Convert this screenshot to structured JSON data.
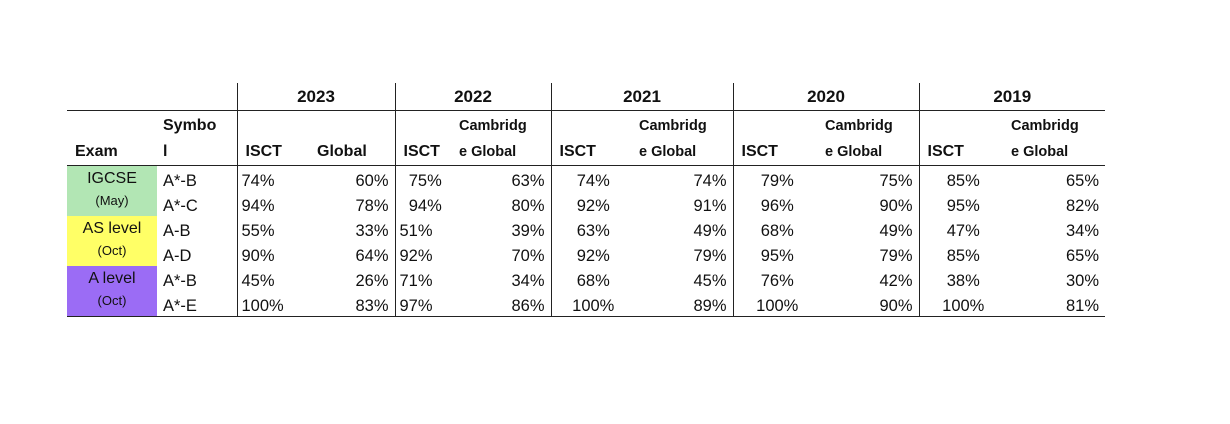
{
  "headers": {
    "exam": "Exam",
    "symbol_line1": "Symbo",
    "symbol_line2": "l",
    "isct": "ISCT",
    "global": "Global",
    "cambridge_line1": "Cambridg",
    "cambridge_line2": "e Global"
  },
  "years": [
    "2023",
    "2022",
    "2021",
    "2020",
    "2019"
  ],
  "exams": [
    {
      "name": "IGCSE",
      "session": "(May)",
      "color": "#b2e6b4"
    },
    {
      "name": "AS level",
      "session": "(Oct)",
      "color": "#ffff66"
    },
    {
      "name": "A level",
      "session": "(Oct)",
      "color": "#9b6cf5"
    }
  ],
  "rows": [
    {
      "symbol": "A*-B",
      "values": [
        "74%",
        "60%",
        "75%",
        "63%",
        "74%",
        "74%",
        "79%",
        "75%",
        "85%",
        "65%"
      ]
    },
    {
      "symbol": "A*-C",
      "values": [
        "94%",
        "78%",
        "94%",
        "80%",
        "92%",
        "91%",
        "96%",
        "90%",
        "95%",
        "82%"
      ]
    },
    {
      "symbol": "A-B",
      "values": [
        "55%",
        "33%",
        "51%",
        "39%",
        "63%",
        "49%",
        "68%",
        "49%",
        "47%",
        "34%"
      ]
    },
    {
      "symbol": "A-D",
      "values": [
        "90%",
        "64%",
        "92%",
        "70%",
        "92%",
        "79%",
        "95%",
        "79%",
        "85%",
        "65%"
      ]
    },
    {
      "symbol": "A*-B",
      "values": [
        "45%",
        "26%",
        "71%",
        "34%",
        "68%",
        "45%",
        "76%",
        "42%",
        "38%",
        "30%"
      ]
    },
    {
      "symbol": "A*-E",
      "values": [
        "100%",
        "83%",
        "97%",
        "86%",
        "100%",
        "89%",
        "100%",
        "90%",
        "100%",
        "81%"
      ]
    }
  ]
}
